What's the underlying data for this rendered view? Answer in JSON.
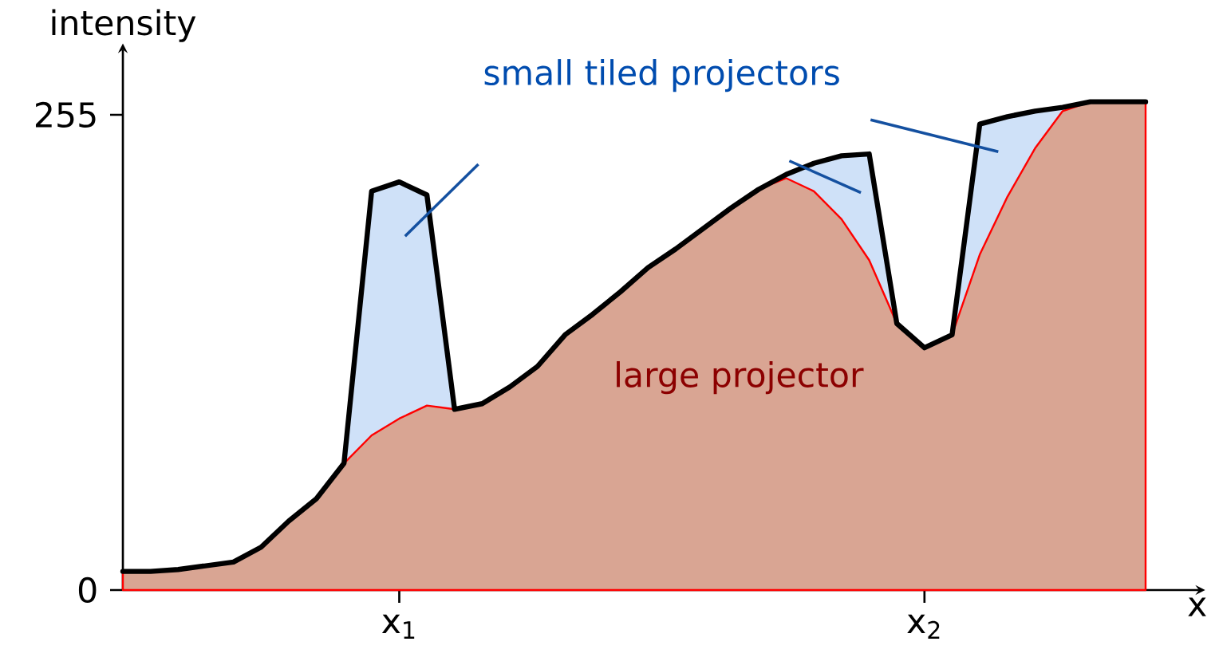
{
  "chart_data": {
    "type": "area",
    "xlabel": "x",
    "ylabel": "intensity",
    "categories": [
      null,
      null,
      null,
      null,
      null,
      null,
      null,
      null,
      null,
      null,
      "x$_{1}$",
      null,
      null,
      null,
      null,
      null,
      null,
      null,
      null,
      null,
      null,
      null,
      null,
      null,
      null,
      null,
      null,
      null,
      null,
      "x$_{2}$",
      null,
      null,
      null,
      null,
      null,
      null,
      null,
      null
    ],
    "ylim": [
      0,
      290
    ],
    "yticks": [
      0,
      255
    ],
    "series": [
      {
        "name": "large projector",
        "type": "area",
        "color": "#d9a593",
        "values": [
          10,
          10,
          11,
          13,
          15,
          23,
          37,
          49,
          68,
          83,
          92,
          99,
          97,
          100,
          109,
          120,
          137,
          148,
          160,
          173,
          183,
          194,
          205,
          215,
          221,
          214,
          199,
          177,
          143,
          130,
          137,
          180,
          211,
          237,
          257,
          262,
          262,
          262
        ]
      },
      {
        "name": "small tiled projectors",
        "type": "area",
        "color": "#cfe1f8",
        "values": [
          10,
          10,
          11,
          13,
          15,
          23,
          37,
          49,
          68,
          214,
          219,
          212,
          97,
          100,
          109,
          120,
          137,
          148,
          160,
          173,
          183,
          194,
          205,
          215,
          223,
          229,
          233,
          234,
          143,
          130,
          137,
          250,
          254,
          257,
          259,
          262,
          262,
          262
        ]
      }
    ]
  }
}
